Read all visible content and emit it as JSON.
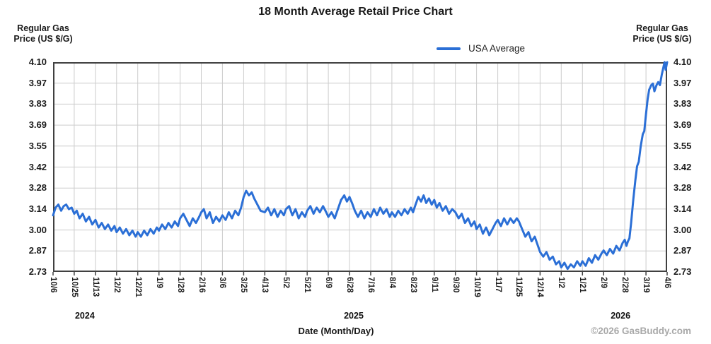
{
  "title": "18 Month Average Retail Price Chart",
  "y_axis_title": {
    "line1": "Regular Gas",
    "line2": "Price (US $/G)"
  },
  "legend": {
    "label": "USA Average"
  },
  "x_axis_title": "Date (Month/Day)",
  "footer": {
    "copyright": "©2026 GasBuddy.com"
  },
  "colors": {
    "line": "#2b6fd6",
    "grid": "#cccccc",
    "axis_border": "#404040",
    "text": "#1a1a1a",
    "copyright": "#a8a8a8"
  },
  "chart_data": {
    "type": "line",
    "title": "18 Month Average Retail Price Chart",
    "xlabel": "Date (Month/Day)",
    "ylabel": "Regular Gas Price (US $/G)",
    "ylim": [
      2.73,
      4.1
    ],
    "grid": true,
    "legend_position": "top",
    "y_tick_labels": [
      "4.10",
      "3.97",
      "3.83",
      "3.69",
      "3.55",
      "3.42",
      "3.28",
      "3.14",
      "3.00",
      "2.87",
      "2.73"
    ],
    "x_tick_labels": [
      "10/6",
      "10/25",
      "11/13",
      "12/2",
      "12/21",
      "1/9",
      "1/28",
      "2/16",
      "3/6",
      "3/25",
      "4/13",
      "5/2",
      "5/21",
      "6/9",
      "6/28",
      "7/16",
      "8/4",
      "8/23",
      "9/11",
      "9/30",
      "10/19",
      "11/7",
      "11/25",
      "12/14",
      "1/2",
      "1/21",
      "2/9",
      "2/28",
      "3/19",
      "4/6"
    ],
    "year_labels": [
      {
        "label": "2024",
        "t": 1.5
      },
      {
        "label": "2025",
        "t": 14.2
      },
      {
        "label": "2026",
        "t": 26.8
      }
    ],
    "series": [
      {
        "name": "USA Average",
        "color": "#2b6fd6",
        "points": [
          [
            0.0,
            3.1
          ],
          [
            0.12,
            3.15
          ],
          [
            0.25,
            3.17
          ],
          [
            0.38,
            3.13
          ],
          [
            0.5,
            3.16
          ],
          [
            0.62,
            3.17
          ],
          [
            0.75,
            3.14
          ],
          [
            0.88,
            3.15
          ],
          [
            1.0,
            3.11
          ],
          [
            1.12,
            3.13
          ],
          [
            1.25,
            3.08
          ],
          [
            1.4,
            3.11
          ],
          [
            1.55,
            3.06
          ],
          [
            1.7,
            3.09
          ],
          [
            1.85,
            3.04
          ],
          [
            2.0,
            3.07
          ],
          [
            2.15,
            3.02
          ],
          [
            2.3,
            3.05
          ],
          [
            2.45,
            3.01
          ],
          [
            2.6,
            3.04
          ],
          [
            2.75,
            3.0
          ],
          [
            2.9,
            3.03
          ],
          [
            3.0,
            2.99
          ],
          [
            3.15,
            3.02
          ],
          [
            3.3,
            2.98
          ],
          [
            3.45,
            3.01
          ],
          [
            3.6,
            2.97
          ],
          [
            3.75,
            3.0
          ],
          [
            3.9,
            2.96
          ],
          [
            4.0,
            2.99
          ],
          [
            4.15,
            2.96
          ],
          [
            4.3,
            3.0
          ],
          [
            4.45,
            2.97
          ],
          [
            4.6,
            3.01
          ],
          [
            4.75,
            2.98
          ],
          [
            4.9,
            3.02
          ],
          [
            5.0,
            3.0
          ],
          [
            5.15,
            3.04
          ],
          [
            5.3,
            3.01
          ],
          [
            5.45,
            3.05
          ],
          [
            5.6,
            3.02
          ],
          [
            5.75,
            3.06
          ],
          [
            5.9,
            3.03
          ],
          [
            6.0,
            3.08
          ],
          [
            6.15,
            3.11
          ],
          [
            6.3,
            3.07
          ],
          [
            6.45,
            3.03
          ],
          [
            6.6,
            3.08
          ],
          [
            6.75,
            3.05
          ],
          [
            6.9,
            3.09
          ],
          [
            7.0,
            3.12
          ],
          [
            7.12,
            3.14
          ],
          [
            7.25,
            3.08
          ],
          [
            7.4,
            3.12
          ],
          [
            7.55,
            3.05
          ],
          [
            7.7,
            3.09
          ],
          [
            7.85,
            3.06
          ],
          [
            8.0,
            3.1
          ],
          [
            8.15,
            3.07
          ],
          [
            8.3,
            3.12
          ],
          [
            8.45,
            3.08
          ],
          [
            8.6,
            3.13
          ],
          [
            8.75,
            3.1
          ],
          [
            8.88,
            3.15
          ],
          [
            9.0,
            3.22
          ],
          [
            9.12,
            3.26
          ],
          [
            9.25,
            3.23
          ],
          [
            9.38,
            3.25
          ],
          [
            9.5,
            3.21
          ],
          [
            9.65,
            3.17
          ],
          [
            9.8,
            3.13
          ],
          [
            10.0,
            3.12
          ],
          [
            10.15,
            3.15
          ],
          [
            10.3,
            3.1
          ],
          [
            10.45,
            3.14
          ],
          [
            10.6,
            3.09
          ],
          [
            10.75,
            3.13
          ],
          [
            10.9,
            3.1
          ],
          [
            11.0,
            3.14
          ],
          [
            11.15,
            3.16
          ],
          [
            11.3,
            3.1
          ],
          [
            11.45,
            3.14
          ],
          [
            11.6,
            3.08
          ],
          [
            11.75,
            3.12
          ],
          [
            11.9,
            3.09
          ],
          [
            12.0,
            3.13
          ],
          [
            12.15,
            3.16
          ],
          [
            12.3,
            3.11
          ],
          [
            12.45,
            3.15
          ],
          [
            12.6,
            3.12
          ],
          [
            12.75,
            3.16
          ],
          [
            12.9,
            3.12
          ],
          [
            13.0,
            3.09
          ],
          [
            13.15,
            3.12
          ],
          [
            13.3,
            3.08
          ],
          [
            13.45,
            3.14
          ],
          [
            13.6,
            3.2
          ],
          [
            13.75,
            3.23
          ],
          [
            13.88,
            3.19
          ],
          [
            14.0,
            3.22
          ],
          [
            14.12,
            3.18
          ],
          [
            14.25,
            3.13
          ],
          [
            14.4,
            3.09
          ],
          [
            14.55,
            3.13
          ],
          [
            14.7,
            3.08
          ],
          [
            14.85,
            3.12
          ],
          [
            15.0,
            3.09
          ],
          [
            15.15,
            3.14
          ],
          [
            15.3,
            3.1
          ],
          [
            15.45,
            3.15
          ],
          [
            15.6,
            3.11
          ],
          [
            15.75,
            3.14
          ],
          [
            15.9,
            3.09
          ],
          [
            16.0,
            3.12
          ],
          [
            16.15,
            3.09
          ],
          [
            16.3,
            3.13
          ],
          [
            16.45,
            3.1
          ],
          [
            16.6,
            3.14
          ],
          [
            16.75,
            3.11
          ],
          [
            16.9,
            3.15
          ],
          [
            17.0,
            3.12
          ],
          [
            17.12,
            3.17
          ],
          [
            17.25,
            3.22
          ],
          [
            17.38,
            3.19
          ],
          [
            17.5,
            3.23
          ],
          [
            17.62,
            3.18
          ],
          [
            17.75,
            3.21
          ],
          [
            17.88,
            3.17
          ],
          [
            18.0,
            3.2
          ],
          [
            18.12,
            3.15
          ],
          [
            18.25,
            3.18
          ],
          [
            18.4,
            3.13
          ],
          [
            18.55,
            3.16
          ],
          [
            18.7,
            3.11
          ],
          [
            18.85,
            3.14
          ],
          [
            19.0,
            3.12
          ],
          [
            19.15,
            3.08
          ],
          [
            19.3,
            3.11
          ],
          [
            19.45,
            3.05
          ],
          [
            19.6,
            3.08
          ],
          [
            19.75,
            3.03
          ],
          [
            19.9,
            3.06
          ],
          [
            20.0,
            3.01
          ],
          [
            20.15,
            3.04
          ],
          [
            20.3,
            2.98
          ],
          [
            20.45,
            3.02
          ],
          [
            20.6,
            2.97
          ],
          [
            20.75,
            3.01
          ],
          [
            20.9,
            3.05
          ],
          [
            21.0,
            3.07
          ],
          [
            21.15,
            3.03
          ],
          [
            21.3,
            3.08
          ],
          [
            21.45,
            3.04
          ],
          [
            21.6,
            3.08
          ],
          [
            21.75,
            3.05
          ],
          [
            21.9,
            3.08
          ],
          [
            22.0,
            3.06
          ],
          [
            22.15,
            3.01
          ],
          [
            22.3,
            2.96
          ],
          [
            22.45,
            2.99
          ],
          [
            22.6,
            2.93
          ],
          [
            22.75,
            2.96
          ],
          [
            22.9,
            2.9
          ],
          [
            23.0,
            2.86
          ],
          [
            23.15,
            2.83
          ],
          [
            23.3,
            2.86
          ],
          [
            23.45,
            2.81
          ],
          [
            23.6,
            2.83
          ],
          [
            23.75,
            2.78
          ],
          [
            23.9,
            2.8
          ],
          [
            24.0,
            2.76
          ],
          [
            24.15,
            2.79
          ],
          [
            24.3,
            2.75
          ],
          [
            24.45,
            2.78
          ],
          [
            24.6,
            2.76
          ],
          [
            24.75,
            2.8
          ],
          [
            24.9,
            2.77
          ],
          [
            25.0,
            2.8
          ],
          [
            25.15,
            2.77
          ],
          [
            25.3,
            2.82
          ],
          [
            25.45,
            2.79
          ],
          [
            25.6,
            2.84
          ],
          [
            25.75,
            2.81
          ],
          [
            25.9,
            2.85
          ],
          [
            26.0,
            2.87
          ],
          [
            26.15,
            2.84
          ],
          [
            26.3,
            2.88
          ],
          [
            26.45,
            2.85
          ],
          [
            26.6,
            2.9
          ],
          [
            26.75,
            2.87
          ],
          [
            26.9,
            2.92
          ],
          [
            27.0,
            2.94
          ],
          [
            27.08,
            2.9
          ],
          [
            27.15,
            2.93
          ],
          [
            27.22,
            2.95
          ],
          [
            27.3,
            3.05
          ],
          [
            27.4,
            3.2
          ],
          [
            27.5,
            3.33
          ],
          [
            27.58,
            3.42
          ],
          [
            27.66,
            3.45
          ],
          [
            27.75,
            3.55
          ],
          [
            27.85,
            3.63
          ],
          [
            27.92,
            3.65
          ],
          [
            28.0,
            3.76
          ],
          [
            28.08,
            3.86
          ],
          [
            28.15,
            3.92
          ],
          [
            28.25,
            3.95
          ],
          [
            28.33,
            3.96
          ],
          [
            28.4,
            3.91
          ],
          [
            28.5,
            3.95
          ],
          [
            28.58,
            3.97
          ],
          [
            28.66,
            3.95
          ],
          [
            28.75,
            4.02
          ],
          [
            28.83,
            4.07
          ],
          [
            28.88,
            4.1
          ],
          [
            28.93,
            4.05
          ],
          [
            29.0,
            4.1
          ]
        ]
      }
    ]
  }
}
